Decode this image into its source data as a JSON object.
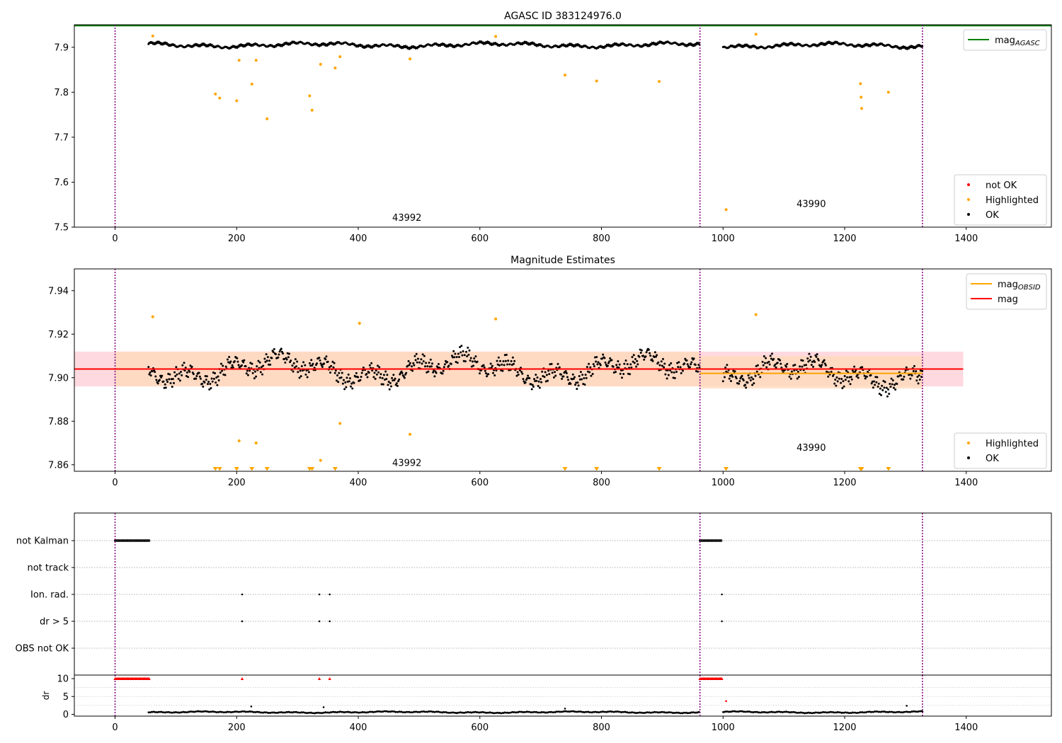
{
  "figure": {
    "background": "#ffffff"
  },
  "colors": {
    "ok": "#000000",
    "highlighted": "#ffa500",
    "not_ok": "#ff0000",
    "mag_agasc": "#008000",
    "mag": "#ff0000",
    "mag_obsid": "#ffa500",
    "obs_boundary": "#800080",
    "band_obsid": "#ffdab9",
    "band_mag": "#ffc0cb"
  },
  "chart_data": [
    {
      "type": "scatter",
      "title": "AGASC ID 383124976.0",
      "xlim": [
        -67,
        1540
      ],
      "ylim": [
        7.5,
        7.95
      ],
      "xticks": [
        0,
        200,
        400,
        600,
        800,
        1000,
        1200,
        1400
      ],
      "yticks": [
        7.5,
        7.6,
        7.7,
        7.8,
        7.9
      ],
      "mag_agasc": 7.948,
      "obs_boundaries": [
        0,
        962,
        1328
      ],
      "obs_labels": [
        {
          "text": "43992",
          "x": 480,
          "y": 7.522
        },
        {
          "text": "43990",
          "x": 1145,
          "y": 7.553
        }
      ],
      "ok_segments": [
        {
          "x0": 55,
          "x1": 962,
          "base": 7.905,
          "amp": 0.009
        },
        {
          "x0": 1000,
          "x1": 1328,
          "base": 7.904,
          "amp": 0.009
        }
      ],
      "highlighted_points": [
        [
          62,
          7.925
        ],
        [
          165,
          7.796
        ],
        [
          172,
          7.787
        ],
        [
          200,
          7.781
        ],
        [
          204,
          7.871
        ],
        [
          225,
          7.818
        ],
        [
          232,
          7.871
        ],
        [
          250,
          7.741
        ],
        [
          320,
          7.792
        ],
        [
          324,
          7.76
        ],
        [
          338,
          7.862
        ],
        [
          362,
          7.854
        ],
        [
          370,
          7.879
        ],
        [
          485,
          7.874
        ],
        [
          626,
          7.924
        ],
        [
          740,
          7.838
        ],
        [
          792,
          7.825
        ],
        [
          895,
          7.824
        ],
        [
          1005,
          7.539
        ],
        [
          1054,
          7.929
        ],
        [
          1226,
          7.819
        ],
        [
          1227,
          7.789
        ],
        [
          1228,
          7.764
        ],
        [
          1272,
          7.8
        ]
      ],
      "legends": [
        {
          "position": "top-right",
          "entries": [
            {
              "label": "mag",
              "sub": "AGASC",
              "kind": "line",
              "color": "#008000"
            }
          ]
        },
        {
          "position": "lower-right",
          "entries": [
            {
              "label": "not OK",
              "kind": "dot",
              "color": "#ff0000"
            },
            {
              "label": "Highlighted",
              "kind": "dot",
              "color": "#ffa500"
            },
            {
              "label": "OK",
              "kind": "dot",
              "color": "#000000"
            }
          ]
        }
      ]
    },
    {
      "type": "scatter",
      "title": "Magnitude Estimates",
      "xlim": [
        -67,
        1540
      ],
      "ylim": [
        7.857,
        7.95
      ],
      "xticks": [
        0,
        200,
        400,
        600,
        800,
        1000,
        1200,
        1400
      ],
      "yticks": [
        7.86,
        7.88,
        7.9,
        7.92,
        7.94
      ],
      "mag": 7.904,
      "mag_band": [
        7.896,
        7.912
      ],
      "mag_span": [
        -67,
        1395
      ],
      "obsid_segments": [
        {
          "x0": 0,
          "x1": 962,
          "mag": 7.904,
          "band": [
            7.896,
            7.912
          ]
        },
        {
          "x0": 962,
          "x1": 1328,
          "mag": 7.902,
          "band": [
            7.895,
            7.91
          ]
        }
      ],
      "obs_boundaries": [
        0,
        962,
        1328
      ],
      "obs_labels": [
        {
          "text": "43992",
          "x": 480,
          "y": 7.861
        },
        {
          "text": "43990",
          "x": 1145,
          "y": 7.868
        }
      ],
      "ok_segments": [
        {
          "x0": 55,
          "x1": 962,
          "base": 7.904,
          "amp": 0.011
        },
        {
          "x0": 1000,
          "x1": 1328,
          "base": 7.902,
          "amp": 0.011
        }
      ],
      "highlighted_points": [
        [
          62,
          7.928
        ],
        [
          204,
          7.871
        ],
        [
          232,
          7.87
        ],
        [
          338,
          7.862
        ],
        [
          370,
          7.879
        ],
        [
          485,
          7.874
        ],
        [
          626,
          7.927
        ],
        [
          1054,
          7.929
        ],
        [
          402,
          7.925
        ]
      ],
      "highlighted_below": [
        165,
        172,
        200,
        225,
        250,
        320,
        324,
        362,
        740,
        792,
        895,
        1005,
        1226,
        1228,
        1272
      ],
      "legends": [
        {
          "position": "top-right",
          "entries": [
            {
              "label": "mag",
              "sub": "OBSID",
              "kind": "line",
              "color": "#ffa500"
            },
            {
              "label": "mag",
              "kind": "line",
              "color": "#ff0000"
            }
          ]
        },
        {
          "position": "lower-right",
          "entries": [
            {
              "label": "Highlighted",
              "kind": "dot",
              "color": "#ffa500"
            },
            {
              "label": "OK",
              "kind": "dot",
              "color": "#000000"
            }
          ]
        }
      ]
    },
    {
      "type": "scatter",
      "title": "",
      "xlim": [
        -67,
        1540
      ],
      "categories": [
        "not Kalman",
        "not track",
        "Ion. rad.",
        "dr > 5",
        "OBS not OK"
      ],
      "flags": {
        "not Kalman": {
          "ranges": [
            [
              0,
              57
            ],
            [
              962,
              997
            ]
          ]
        },
        "not track": {
          "ranges": []
        },
        "Ion. rad.": {
          "points": [
            209,
            336,
            353,
            998
          ]
        },
        "dr > 5": {
          "points": [
            209,
            336,
            353,
            998
          ]
        },
        "OBS not OK": {
          "points": []
        }
      },
      "obs_boundaries": [
        0,
        962,
        1328
      ]
    },
    {
      "type": "scatter",
      "title": "",
      "ylabel": "dr",
      "xlim": [
        -67,
        1540
      ],
      "ylim": [
        -0.5,
        11
      ],
      "xticks": [
        0,
        200,
        400,
        600,
        800,
        1000,
        1200,
        1400
      ],
      "yticks": [
        0,
        5,
        10
      ],
      "capped_value": 10,
      "capped_ranges": [
        [
          0,
          57
        ],
        [
          962,
          997
        ]
      ],
      "capped_points": [
        209,
        336,
        353,
        998
      ],
      "dr_segments": [
        {
          "x0": 55,
          "x1": 962,
          "base": 0.6,
          "amp": 0.35
        },
        {
          "x0": 1000,
          "x1": 1328,
          "base": 0.6,
          "amp": 0.35
        }
      ],
      "dr_outliers": [
        [
          224,
          2.2
        ],
        [
          343,
          2.0
        ],
        [
          740,
          1.6
        ],
        [
          1005,
          3.7
        ],
        [
          1302,
          2.4
        ]
      ],
      "obs_boundaries": [
        0,
        962,
        1328
      ]
    }
  ]
}
